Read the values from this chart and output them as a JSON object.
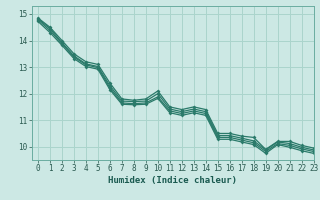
{
  "xlabel": "Humidex (Indice chaleur)",
  "ylabel": "",
  "background_color": "#cce8e4",
  "grid_color": "#aad4cc",
  "line_color": "#2a7a6a",
  "xlim": [
    -0.5,
    23
  ],
  "ylim": [
    9.5,
    15.3
  ],
  "yticks": [
    10,
    11,
    12,
    13,
    14,
    15
  ],
  "xticks": [
    0,
    1,
    2,
    3,
    4,
    5,
    6,
    7,
    8,
    9,
    10,
    11,
    12,
    13,
    14,
    15,
    16,
    17,
    18,
    19,
    20,
    21,
    22,
    23
  ],
  "lines": [
    [
      14.85,
      14.5,
      14.0,
      13.5,
      13.2,
      13.1,
      12.4,
      11.8,
      11.75,
      11.8,
      12.1,
      11.5,
      11.4,
      11.5,
      11.4,
      10.5,
      10.5,
      10.4,
      10.35,
      9.9,
      10.2,
      10.2,
      10.05,
      9.95
    ],
    [
      14.82,
      14.45,
      13.92,
      13.42,
      13.12,
      13.02,
      12.3,
      11.72,
      11.7,
      11.72,
      12.0,
      11.42,
      11.32,
      11.42,
      11.32,
      10.42,
      10.42,
      10.32,
      10.22,
      9.88,
      10.18,
      10.12,
      9.98,
      9.88
    ],
    [
      14.78,
      14.38,
      13.88,
      13.38,
      13.08,
      12.98,
      12.22,
      11.65,
      11.62,
      11.65,
      11.88,
      11.35,
      11.25,
      11.35,
      11.25,
      10.35,
      10.35,
      10.25,
      10.15,
      9.82,
      10.12,
      10.05,
      9.92,
      9.82
    ],
    [
      14.72,
      14.3,
      13.82,
      13.32,
      13.02,
      12.92,
      12.15,
      11.6,
      11.58,
      11.6,
      11.82,
      11.28,
      11.18,
      11.28,
      11.18,
      10.28,
      10.28,
      10.18,
      10.08,
      9.75,
      10.08,
      9.98,
      9.85,
      9.75
    ]
  ]
}
